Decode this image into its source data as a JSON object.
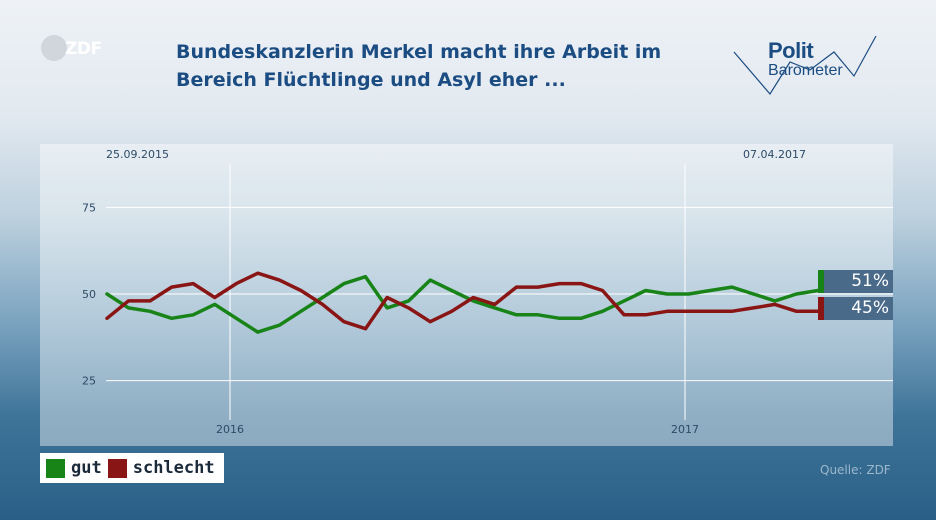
{
  "logo_zdf": {
    "text": "ZDF"
  },
  "title": {
    "line1": "Bundeskanzlerin Merkel macht ihre Arbeit im",
    "line2": "Bereich Flüchtlinge und Asyl eher ..."
  },
  "polit_logo": {
    "line1": "Polit",
    "line2": "Barometer"
  },
  "source": "Quelle: ZDF",
  "colors": {
    "gut": "#188418",
    "schlecht": "#8a1515",
    "badge_bg": "#4a6a8a"
  },
  "chart_data": {
    "type": "line",
    "start_label": "25.09.2015",
    "end_label": "07.04.2017",
    "x_ticks": [
      "2016",
      "2017"
    ],
    "y_ticks": [
      25,
      50,
      75
    ],
    "ylim": [
      12.5,
      87.5
    ],
    "legend_position": "bottom-left",
    "series": [
      {
        "name": "gut",
        "color": "#188418",
        "values": [
          50,
          46,
          45,
          43,
          44,
          47,
          43,
          39,
          41,
          45,
          49,
          53,
          55,
          46,
          48,
          54,
          51,
          48,
          46,
          44,
          44,
          43,
          43,
          45,
          48,
          51,
          50,
          50,
          51,
          52,
          50,
          48,
          50,
          51
        ],
        "end_value_label": "51%"
      },
      {
        "name": "schlecht",
        "color": "#8a1515",
        "values": [
          43,
          48,
          48,
          52,
          53,
          49,
          53,
          56,
          54,
          51,
          47,
          42,
          40,
          49,
          46,
          42,
          45,
          49,
          47,
          52,
          52,
          53,
          53,
          51,
          44,
          44,
          45,
          45,
          45,
          45,
          46,
          47,
          45,
          45
        ],
        "end_value_label": "45%"
      }
    ]
  }
}
